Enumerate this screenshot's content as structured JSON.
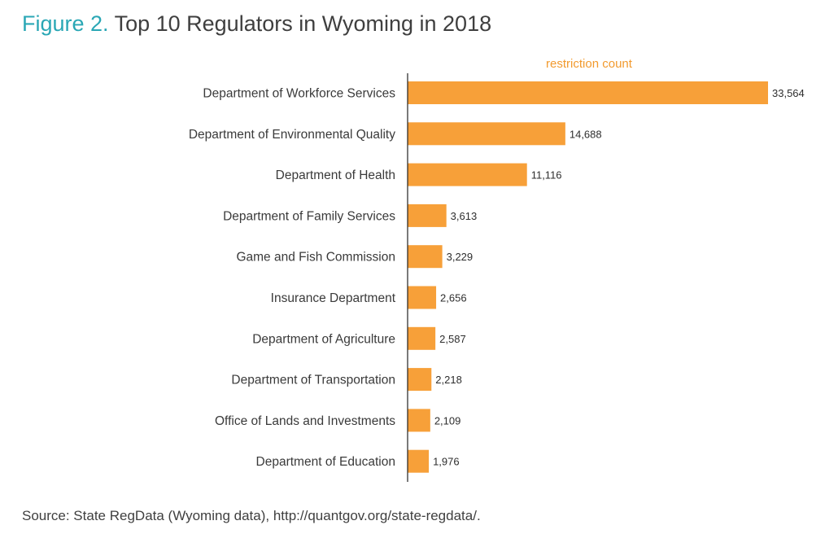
{
  "figure_label": "Figure 2.",
  "figure_title": "Top 10 Regulators in Wyoming in 2018",
  "source": "Source: State RegData (Wyoming data), http://quantgov.org/state-regdata/.",
  "colors": {
    "bar": "#f7a039",
    "axis": "#222222",
    "measure_label": "#f29a2e",
    "figure_label": "#2aa7b5"
  },
  "chart_data": {
    "type": "bar",
    "orientation": "horizontal",
    "measure_label": "restriction count",
    "categories": [
      "Department of Workforce Services",
      "Department of Environmental Quality",
      "Department of Health",
      "Department of Family Services",
      "Game and Fish Commission",
      "Insurance Department",
      "Department of Agriculture",
      "Department of Transportation",
      "Office of Lands and Investments",
      "Department of Education"
    ],
    "values": [
      33564,
      14688,
      11116,
      3613,
      3229,
      2656,
      2587,
      2218,
      2109,
      1976
    ],
    "value_labels": [
      "33,564",
      "14,688",
      "11,116",
      "3,613",
      "3,229",
      "2,656",
      "2,587",
      "2,218",
      "2,109",
      "1,976"
    ],
    "xlim": [
      0,
      33564
    ],
    "grid": false
  }
}
